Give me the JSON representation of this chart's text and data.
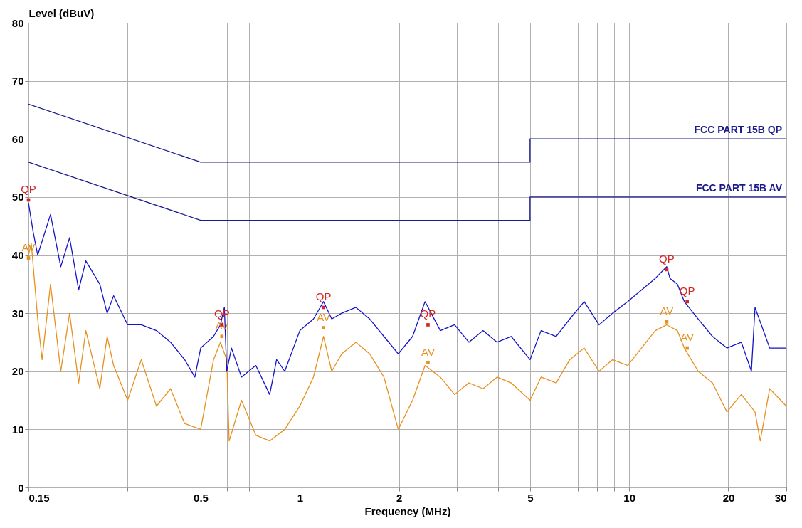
{
  "chart_data": {
    "type": "line",
    "xlabel": "Frequency (MHz)",
    "ylabel": "Level (dBuV)",
    "log": "x",
    "grid": true,
    "xlim": [
      0.15,
      30
    ],
    "ylim": [
      0,
      80
    ],
    "xticks": [
      0.15,
      {
        "value": 0.2,
        "label": null
      },
      {
        "value": 0.3,
        "label": null
      },
      {
        "value": 0.4,
        "label": null
      },
      0.5,
      {
        "value": 0.6,
        "label": null
      },
      {
        "value": 0.7,
        "label": null
      },
      {
        "value": 0.8,
        "label": null
      },
      {
        "value": 0.9,
        "label": null
      },
      1,
      2,
      {
        "value": 3,
        "label": null
      },
      {
        "value": 4,
        "label": null
      },
      5,
      {
        "value": 6,
        "label": null
      },
      {
        "value": 7,
        "label": null
      },
      {
        "value": 8,
        "label": null
      },
      {
        "value": 9,
        "label": null
      },
      10,
      20,
      30
    ],
    "yticks": [
      0,
      10,
      20,
      30,
      40,
      50,
      60,
      70,
      80
    ],
    "series": [
      {
        "color": "#e8901e",
        "x": [
          0.15,
          0.153,
          0.16,
          0.165,
          0.175,
          0.188,
          0.2,
          0.213,
          0.224,
          0.247,
          0.26,
          0.272,
          0.3,
          0.33,
          0.367,
          0.405,
          0.447,
          0.5,
          0.547,
          0.574,
          0.6,
          0.61,
          0.665,
          0.735,
          0.81,
          0.9,
          1.0,
          1.1,
          1.18,
          1.25,
          1.34,
          1.48,
          1.63,
          1.8,
          1.99,
          2.2,
          2.4,
          2.67,
          2.95,
          3.26,
          3.6,
          3.97,
          4.38,
          5.0,
          5.4,
          6.0,
          6.6,
          7.3,
          8.1,
          8.9,
          9.9,
          10.9,
          12.0,
          13.0,
          14.0,
          14.7,
          16.2,
          17.9,
          19.8,
          21.9,
          24.1,
          25,
          26.7,
          30
        ],
        "values": [
          40,
          42,
          29,
          22,
          35,
          20,
          30,
          18,
          27,
          17,
          26,
          21,
          15,
          22,
          14,
          17,
          11,
          10,
          22,
          25,
          22,
          8,
          15,
          9,
          8,
          10,
          14,
          19,
          26,
          20,
          23,
          25,
          23,
          19,
          10,
          15,
          21,
          19,
          16,
          18,
          17,
          19,
          18,
          15,
          19,
          18,
          22,
          24,
          20,
          22,
          21,
          24,
          27,
          28,
          27,
          24,
          20,
          18,
          13,
          16,
          13,
          8,
          17,
          14
        ]
      },
      {
        "color": "#1414c8",
        "x": [
          0.15,
          0.155,
          0.16,
          0.175,
          0.188,
          0.2,
          0.213,
          0.224,
          0.247,
          0.26,
          0.272,
          0.3,
          0.33,
          0.367,
          0.405,
          0.447,
          0.48,
          0.5,
          0.547,
          0.574,
          0.59,
          0.6,
          0.62,
          0.665,
          0.735,
          0.81,
          0.85,
          0.9,
          1.0,
          1.1,
          1.18,
          1.25,
          1.34,
          1.48,
          1.63,
          1.8,
          1.99,
          2.2,
          2.4,
          2.67,
          2.95,
          3.26,
          3.6,
          3.97,
          4.38,
          5.0,
          5.4,
          6.0,
          6.6,
          7.3,
          8.1,
          8.9,
          9.9,
          10.9,
          12.0,
          13.0,
          13.3,
          14.0,
          14.7,
          16.2,
          17.9,
          19.8,
          21.9,
          23.5,
          24.1,
          26.7,
          30
        ],
        "values": [
          49,
          44,
          40,
          47,
          38,
          43,
          34,
          39,
          35,
          30,
          33,
          28,
          28,
          27,
          25,
          22,
          19,
          24,
          26,
          28,
          31,
          20,
          24,
          19,
          21,
          16,
          22,
          20,
          27,
          29,
          32,
          29,
          30,
          31,
          29,
          26,
          23,
          26,
          32,
          27,
          28,
          25,
          27,
          25,
          26,
          22,
          27,
          26,
          29,
          32,
          28,
          30,
          32,
          34,
          36,
          38,
          36,
          35,
          32,
          29,
          26,
          24,
          25,
          20,
          31,
          24,
          24
        ]
      },
      {
        "type": "line",
        "name": "FCC PART 15B QP",
        "color": "#1a1a8c",
        "x": [
          0.15,
          0.5,
          5,
          5,
          30
        ],
        "values": [
          66,
          56,
          56,
          60,
          60
        ]
      },
      {
        "type": "line",
        "name": "FCC PART 15B AV",
        "color": "#1a1a8c",
        "x": [
          0.15,
          0.5,
          5,
          5,
          30
        ],
        "values": [
          56,
          46,
          46,
          50,
          50
        ]
      },
      {
        "type": "scatter",
        "name": "QP",
        "color": "#d02828",
        "x": [
          0.15,
          0.58,
          1.18,
          2.45,
          13,
          15
        ],
        "values": [
          49.5,
          28,
          31,
          28,
          37.5,
          32
        ]
      },
      {
        "type": "scatter",
        "name": "AV",
        "color": "#e8901e",
        "x": [
          0.15,
          0.58,
          1.18,
          2.45,
          13,
          15
        ],
        "values": [
          39.5,
          26,
          27.5,
          21.5,
          28.5,
          24
        ]
      }
    ]
  }
}
